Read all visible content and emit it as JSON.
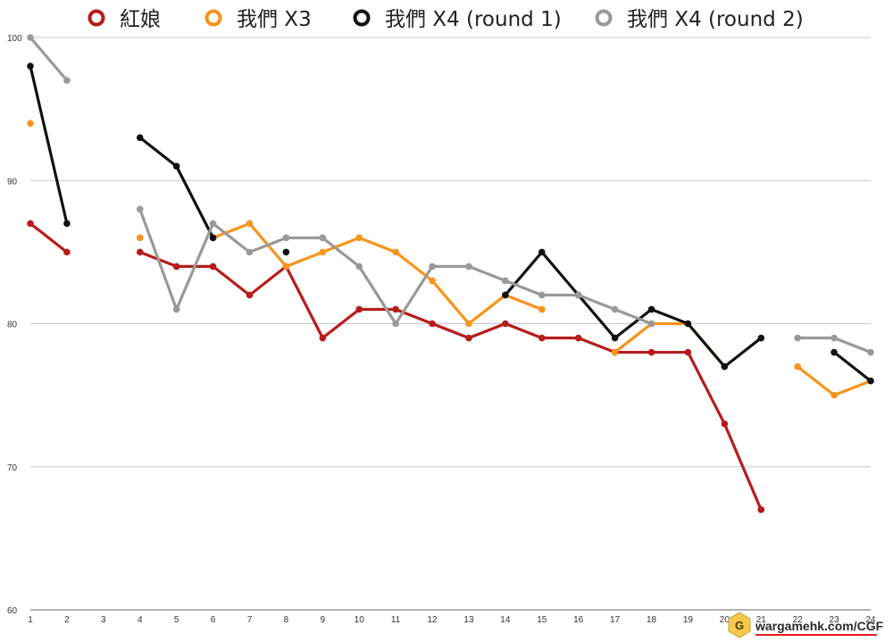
{
  "chart_data": {
    "type": "line",
    "x": [
      1,
      2,
      3,
      4,
      5,
      6,
      7,
      8,
      9,
      10,
      11,
      12,
      13,
      14,
      15,
      16,
      17,
      18,
      19,
      20,
      21,
      22,
      23,
      24
    ],
    "ylim": [
      60,
      100
    ],
    "yticks": [
      60,
      70,
      80,
      90,
      100
    ],
    "grid": true,
    "legend": "top",
    "series": [
      {
        "name": "紅娘",
        "color": "#b71c1c",
        "values": [
          87,
          85,
          null,
          85,
          84,
          84,
          82,
          84,
          79,
          81,
          81,
          80,
          79,
          80,
          79,
          79,
          78,
          78,
          78,
          73,
          67,
          null,
          null,
          null
        ]
      },
      {
        "name": "我們 X3",
        "color": "#f7941d",
        "values": [
          94,
          null,
          null,
          86,
          null,
          86,
          87,
          84,
          85,
          86,
          85,
          83,
          80,
          82,
          81,
          null,
          78,
          80,
          80,
          77,
          null,
          77,
          75,
          76
        ]
      },
      {
        "name": "我們 X4 (round 1)",
        "color": "#111111",
        "values": [
          98,
          87,
          null,
          93,
          91,
          86,
          null,
          85,
          null,
          null,
          null,
          null,
          null,
          82,
          85,
          82,
          79,
          81,
          80,
          77,
          79,
          null,
          78,
          76
        ]
      },
      {
        "name": "我們 X4 (round 2)",
        "color": "#999999",
        "values": [
          100,
          97,
          null,
          88,
          81,
          87,
          85,
          86,
          86,
          84,
          80,
          84,
          84,
          83,
          82,
          82,
          81,
          80,
          null,
          null,
          null,
          79,
          79,
          78
        ]
      }
    ]
  },
  "watermark": {
    "text": "wargamehk.com/CGF",
    "icon": "hexagon-logo-icon",
    "logo_letter": "G"
  }
}
